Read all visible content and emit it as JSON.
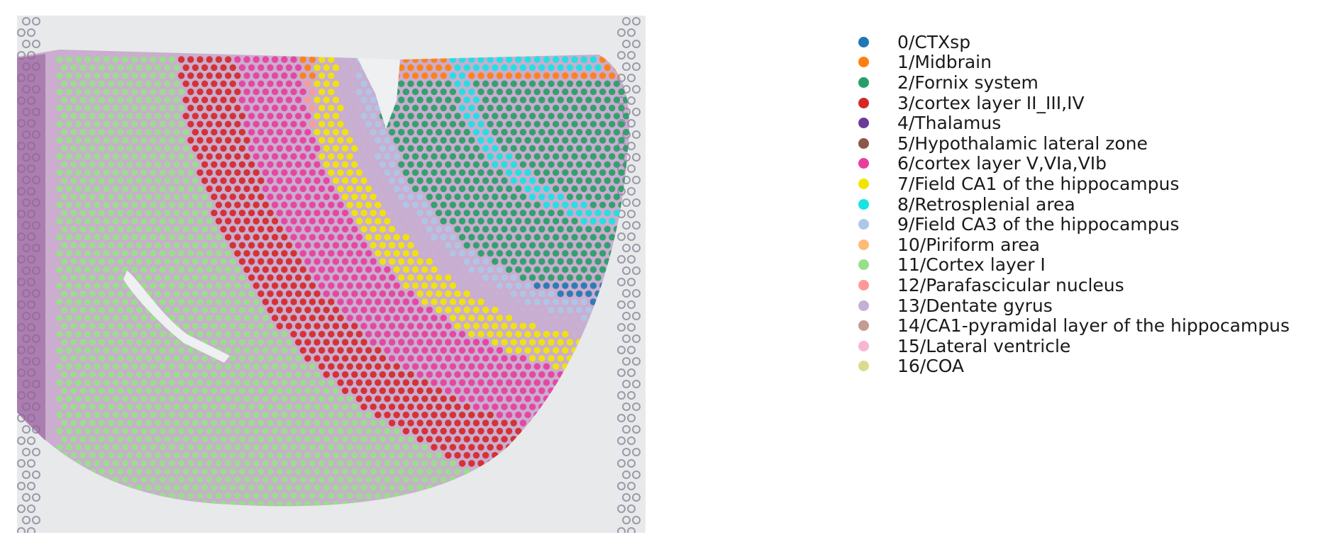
{
  "figure": {
    "background_color": "#e8e9ea",
    "tissue_color": "#b07cb8",
    "fiducial_color": "#9a99a8"
  },
  "legend": {
    "items": [
      {
        "label": "0/CTXsp",
        "color": "#1f77b4"
      },
      {
        "label": "1/Midbrain",
        "color": "#ff7f0e"
      },
      {
        "label": "2/Fornix system",
        "color": "#279e68"
      },
      {
        "label": "3/cortex layer II_III,IV",
        "color": "#d62728"
      },
      {
        "label": "4/Thalamus",
        "color": "#6a3d9a"
      },
      {
        "label": "5/Hypothalamic lateral zone",
        "color": "#8c564b"
      },
      {
        "label": "6/cortex layer V,VIa,VIb",
        "color": "#e83e9f"
      },
      {
        "label": "7/Field CA1 of the hippocampus",
        "color": "#f2e600"
      },
      {
        "label": "8/Retrosplenial area",
        "color": "#17e3e3"
      },
      {
        "label": "9/Field CA3 of the hippocampus",
        "color": "#aec7e8"
      },
      {
        "label": "10/Piriform area",
        "color": "#ffbb78"
      },
      {
        "label": "11/Cortex layer I",
        "color": "#98df8a"
      },
      {
        "label": "12/Parafascicular nucleus",
        "color": "#ff9896"
      },
      {
        "label": "13/Dentate gyrus",
        "color": "#c5b0d5"
      },
      {
        "label": "14/CA1-pyramidal layer of the hippocampus",
        "color": "#c49c94"
      },
      {
        "label": "15/Lateral ventricle",
        "color": "#f7b6d2"
      },
      {
        "label": "16/COA",
        "color": "#dbdb8d"
      }
    ]
  }
}
